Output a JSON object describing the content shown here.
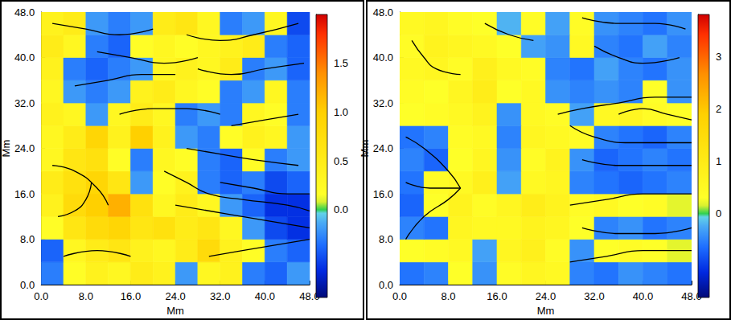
{
  "chart_data": [
    {
      "type": "heatmap",
      "xlabel": "Mm",
      "ylabel": "Mm",
      "xlim": [
        0,
        48
      ],
      "ylim": [
        0,
        48
      ],
      "xticks": [
        {
          "value": 0,
          "label": "0.0"
        },
        {
          "value": 8,
          "label": "8.0"
        },
        {
          "value": 16,
          "label": "16.0"
        },
        {
          "value": 24,
          "label": "24.0"
        },
        {
          "value": 32,
          "label": "32.0"
        },
        {
          "value": 40,
          "label": "40.0"
        },
        {
          "value": 48,
          "label": "48.0"
        }
      ],
      "yticks": [
        {
          "value": 0,
          "label": "0.0"
        },
        {
          "value": 8,
          "label": "8.0"
        },
        {
          "value": 16,
          "label": "16.0"
        },
        {
          "value": 24,
          "label": "24.0"
        },
        {
          "value": 32,
          "label": "32.0"
        },
        {
          "value": 40,
          "label": "40.0"
        },
        {
          "value": 48,
          "label": "48.0"
        }
      ],
      "cells": {
        "x_edges": [
          0,
          4,
          8,
          12,
          16,
          20,
          24,
          28,
          32,
          36,
          40,
          44,
          48
        ],
        "y_edges": [
          0,
          4,
          8,
          12,
          16,
          20,
          24,
          28,
          32,
          36,
          40,
          44,
          48
        ],
        "values": [
          [
            -0.3,
            0.2,
            0.4,
            0.3,
            0.5,
            0.4,
            -0.2,
            0.3,
            0.4,
            -0.3,
            -0.4,
            -0.2
          ],
          [
            -0.4,
            0.3,
            0.5,
            0.6,
            0.4,
            0.3,
            0.5,
            0.8,
            0.4,
            0.2,
            -0.3,
            -0.4
          ],
          [
            0.2,
            0.6,
            0.8,
            0.9,
            0.6,
            0.7,
            0.5,
            0.6,
            0.3,
            -0.2,
            -0.5,
            -0.6
          ],
          [
            0.4,
            0.8,
            1.0,
            1.2,
            0.7,
            0.3,
            0.5,
            0.3,
            -0.2,
            -0.4,
            -0.6,
            -0.6
          ],
          [
            0.5,
            0.7,
            0.9,
            0.6,
            -0.2,
            0.2,
            0.4,
            -0.3,
            -0.4,
            -0.3,
            -0.5,
            -0.4
          ],
          [
            0.3,
            0.6,
            0.7,
            0.2,
            -0.3,
            0.3,
            0.2,
            -0.3,
            -0.4,
            0.2,
            -0.3,
            -0.2
          ],
          [
            0.3,
            0.5,
            0.9,
            0.4,
            1.0,
            0.4,
            -0.2,
            -0.3,
            0.2,
            0.4,
            0.3,
            -0.2
          ],
          [
            0.4,
            0.3,
            -0.2,
            0.3,
            0.5,
            0.3,
            -0.3,
            -0.2,
            -0.3,
            0.3,
            0.2,
            -0.3
          ],
          [
            0.3,
            -0.2,
            -0.3,
            -0.2,
            0.4,
            0.5,
            0.3,
            0.2,
            -0.3,
            -0.2,
            0.3,
            -0.3
          ],
          [
            0.4,
            -0.3,
            -0.4,
            -0.3,
            -0.2,
            0.3,
            0.4,
            0.3,
            0.5,
            -0.3,
            -0.2,
            -0.4
          ],
          [
            0.5,
            0.3,
            -0.3,
            -0.4,
            0.2,
            0.3,
            0.2,
            0.3,
            0.4,
            0.5,
            -0.3,
            -0.4
          ],
          [
            0.4,
            0.5,
            -0.2,
            -0.3,
            -0.2,
            0.5,
            0.6,
            0.3,
            -0.3,
            -0.2,
            0.3,
            -0.5
          ]
        ]
      },
      "colorbar": {
        "lim": [
          -0.9,
          2.0
        ],
        "ticks": [
          {
            "value": 0,
            "label": "0.0"
          },
          0.5,
          {
            "value": 1,
            "label": "1.0"
          },
          1.5
        ]
      },
      "streamlines": [
        [
          [
            2,
            46
          ],
          [
            8,
            45
          ],
          [
            14,
            44
          ],
          [
            20,
            45
          ]
        ],
        [
          [
            10,
            41
          ],
          [
            16,
            40
          ],
          [
            22,
            39
          ],
          [
            28,
            40
          ]
        ],
        [
          [
            26,
            44
          ],
          [
            32,
            43
          ],
          [
            38,
            44
          ],
          [
            46,
            46
          ]
        ],
        [
          [
            6,
            35
          ],
          [
            12,
            36
          ],
          [
            18,
            37
          ],
          [
            24,
            37
          ]
        ],
        [
          [
            28,
            38
          ],
          [
            34,
            37
          ],
          [
            40,
            38
          ],
          [
            47,
            39
          ]
        ],
        [
          [
            14,
            30
          ],
          [
            20,
            31
          ],
          [
            26,
            31
          ],
          [
            32,
            30
          ]
        ],
        [
          [
            34,
            28
          ],
          [
            40,
            29
          ],
          [
            46,
            30
          ]
        ],
        [
          [
            2,
            21
          ],
          [
            6,
            20
          ],
          [
            10,
            17
          ],
          [
            12,
            14
          ]
        ],
        [
          [
            3,
            12
          ],
          [
            6,
            13
          ],
          [
            8,
            15
          ],
          [
            9,
            18
          ]
        ],
        [
          [
            22,
            20
          ],
          [
            26,
            18
          ],
          [
            30,
            16
          ],
          [
            36,
            15
          ],
          [
            44,
            14
          ],
          [
            48,
            13
          ]
        ],
        [
          [
            24,
            14
          ],
          [
            30,
            13
          ],
          [
            36,
            12
          ],
          [
            42,
            11
          ],
          [
            48,
            10
          ]
        ],
        [
          [
            30,
            5
          ],
          [
            36,
            6
          ],
          [
            42,
            7
          ],
          [
            48,
            8
          ]
        ],
        [
          [
            4,
            5
          ],
          [
            10,
            6
          ],
          [
            16,
            5
          ]
        ],
        [
          [
            26,
            24
          ],
          [
            32,
            23
          ],
          [
            38,
            22
          ],
          [
            46,
            21
          ]
        ],
        [
          [
            32,
            18
          ],
          [
            38,
            17
          ],
          [
            44,
            16
          ],
          [
            48,
            16
          ]
        ]
      ]
    },
    {
      "type": "heatmap",
      "xlabel": "Mm",
      "ylabel": "Mm",
      "xlim": [
        0,
        48
      ],
      "ylim": [
        0,
        48
      ],
      "xticks": [
        {
          "value": 0,
          "label": "0.0"
        },
        {
          "value": 8,
          "label": "8.0"
        },
        {
          "value": 16,
          "label": "16.0"
        },
        {
          "value": 24,
          "label": "24.0"
        },
        {
          "value": 32,
          "label": "32.0"
        },
        {
          "value": 40,
          "label": "40.0"
        },
        {
          "value": 48,
          "label": "48.0"
        }
      ],
      "yticks": [
        {
          "value": 0,
          "label": "0.0"
        },
        {
          "value": 8,
          "label": "8.0"
        },
        {
          "value": 16,
          "label": "16.0"
        },
        {
          "value": 24,
          "label": "24.0"
        },
        {
          "value": 32,
          "label": "32.0"
        },
        {
          "value": 40,
          "label": "40.0"
        },
        {
          "value": 48,
          "label": "48.0"
        }
      ],
      "cells": {
        "x_edges": [
          0,
          4,
          8,
          12,
          16,
          20,
          24,
          28,
          32,
          36,
          40,
          44,
          48
        ],
        "y_edges": [
          0,
          4,
          8,
          12,
          16,
          20,
          24,
          28,
          32,
          36,
          40,
          44,
          48
        ],
        "values": [
          [
            -0.6,
            -0.5,
            0.3,
            -0.4,
            0.4,
            0.6,
            0.5,
            -0.5,
            -0.6,
            -0.4,
            -0.5,
            -0.6
          ],
          [
            0.3,
            0.4,
            0.5,
            -0.3,
            0.6,
            0.8,
            0.4,
            -0.4,
            0.3,
            0.4,
            0.3,
            0.2
          ],
          [
            -0.5,
            -0.6,
            0.6,
            0.5,
            0.5,
            0.7,
            0.6,
            0.3,
            -0.5,
            -0.4,
            -0.6,
            -0.5
          ],
          [
            -0.7,
            0.3,
            0.7,
            0.4,
            0.6,
            0.9,
            0.7,
            0.4,
            0.5,
            0.3,
            0.4,
            0.2
          ],
          [
            -0.6,
            0.4,
            0.5,
            0.8,
            -0.3,
            0.5,
            0.6,
            -0.5,
            -0.6,
            -0.7,
            -0.6,
            -0.5
          ],
          [
            -0.5,
            -0.7,
            0.3,
            0.6,
            -0.4,
            0.4,
            0.7,
            -0.4,
            -0.7,
            -0.6,
            -0.5,
            -0.6
          ],
          [
            -0.6,
            -0.5,
            0.4,
            0.5,
            -0.5,
            0.6,
            0.5,
            0.4,
            -0.5,
            -0.6,
            -0.7,
            -0.5
          ],
          [
            0.3,
            0.4,
            0.5,
            0.7,
            -0.4,
            0.5,
            0.4,
            -0.3,
            0.5,
            0.6,
            0.4,
            0.3
          ],
          [
            0.4,
            0.3,
            0.6,
            0.9,
            0.3,
            0.5,
            -0.4,
            -0.5,
            -0.4,
            -0.5,
            0.3,
            -0.4
          ],
          [
            0.5,
            0.6,
            0.4,
            0.8,
            0.5,
            0.4,
            -0.5,
            -0.6,
            -0.3,
            -0.5,
            -0.6,
            -0.4
          ],
          [
            0.4,
            0.7,
            0.6,
            0.5,
            0.3,
            -0.3,
            -0.4,
            0.5,
            -0.5,
            -0.6,
            -0.3,
            -0.5
          ],
          [
            0.5,
            0.6,
            0.4,
            0.3,
            -0.2,
            0.4,
            -0.3,
            0.4,
            -0.4,
            -0.5,
            -0.6,
            -0.4
          ]
        ]
      },
      "colorbar": {
        "lim": [
          -1.6,
          3.8
        ],
        "ticks": [
          0,
          1,
          2,
          3
        ]
      },
      "streamlines": [
        [
          [
            30,
            47
          ],
          [
            36,
            46
          ],
          [
            42,
            46
          ],
          [
            47,
            45
          ]
        ],
        [
          [
            2,
            43
          ],
          [
            4,
            40
          ],
          [
            6,
            38
          ],
          [
            10,
            37
          ]
        ],
        [
          [
            32,
            42
          ],
          [
            36,
            40
          ],
          [
            40,
            39
          ],
          [
            46,
            40
          ]
        ],
        [
          [
            26,
            30
          ],
          [
            30,
            31
          ],
          [
            36,
            32
          ],
          [
            42,
            33
          ],
          [
            48,
            33
          ]
        ],
        [
          [
            28,
            28
          ],
          [
            32,
            26
          ],
          [
            38,
            25
          ],
          [
            44,
            25
          ],
          [
            48,
            25
          ]
        ],
        [
          [
            30,
            22
          ],
          [
            36,
            21
          ],
          [
            42,
            21
          ],
          [
            48,
            21
          ]
        ],
        [
          [
            28,
            14
          ],
          [
            34,
            15
          ],
          [
            40,
            16
          ],
          [
            48,
            16
          ]
        ],
        [
          [
            30,
            10
          ],
          [
            36,
            9
          ],
          [
            42,
            9
          ],
          [
            48,
            10
          ]
        ],
        [
          [
            28,
            4
          ],
          [
            34,
            5
          ],
          [
            40,
            6
          ],
          [
            48,
            6
          ]
        ],
        [
          [
            1,
            26
          ],
          [
            4,
            24
          ],
          [
            8,
            20
          ],
          [
            10,
            17
          ]
        ],
        [
          [
            1,
            8
          ],
          [
            4,
            12
          ],
          [
            8,
            15
          ],
          [
            10,
            17
          ]
        ],
        [
          [
            1,
            18
          ],
          [
            5,
            17
          ],
          [
            10,
            17
          ]
        ],
        [
          [
            36,
            30
          ],
          [
            40,
            31
          ],
          [
            44,
            30
          ],
          [
            48,
            29
          ]
        ],
        [
          [
            14,
            46
          ],
          [
            18,
            44
          ],
          [
            22,
            43
          ]
        ]
      ]
    }
  ]
}
